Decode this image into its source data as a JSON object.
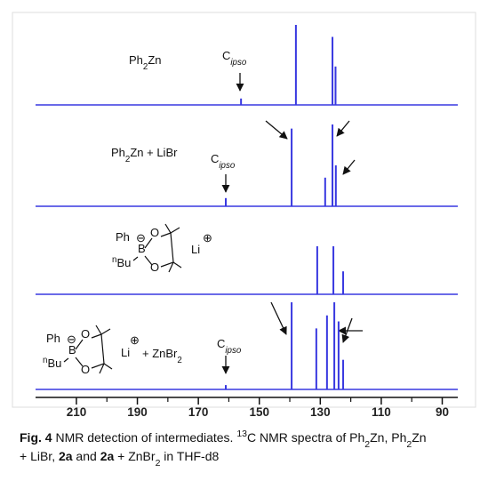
{
  "chart_data": {
    "type": "spectrum",
    "color": "#3838e0",
    "xlim": [
      223.4,
      84.9
    ],
    "xticks": [
      210,
      190,
      170,
      150,
      130,
      110,
      90
    ],
    "xminorticks": [
      200,
      180,
      160,
      140,
      120,
      100
    ],
    "series": [
      {
        "peaks": [
          156,
          138,
          126,
          125
        ],
        "intensities": [
          8,
          100,
          85,
          48
        ],
        "annotations": [
          [
            {
              "text": "Ph"
            },
            {
              "text": "2",
              "sub": true
            },
            {
              "text": "Zn"
            }
          ],
          [
            {
              "text": "C"
            },
            {
              "text": "ipso",
              "sub": true,
              "italic": true
            }
          ]
        ]
      },
      {
        "peaks": [
          161,
          139.4,
          128.4,
          126,
          124.9
        ],
        "intensities": [
          10,
          95,
          35,
          100,
          50
        ],
        "annotations": [
          [
            {
              "text": "Ph"
            },
            {
              "text": "2",
              "sub": true
            },
            {
              "text": "Zn + LiBr"
            }
          ],
          [
            {
              "text": "C"
            },
            {
              "text": "ipso",
              "sub": true,
              "italic": true
            }
          ]
        ]
      },
      {
        "peaks": [
          131,
          125.7,
          122.5
        ],
        "intensities": [
          90,
          90,
          43
        ],
        "annotations": [
          [
            {
              "text": "Ph"
            }
          ],
          [
            {
              "text": "⊖"
            }
          ],
          [
            {
              "text": "O"
            }
          ],
          [
            {
              "text": "B"
            }
          ],
          [
            {
              "text": "n",
              "sup": true
            },
            {
              "text": "Bu"
            }
          ],
          [
            {
              "text": "O"
            }
          ],
          [
            {
              "text": "Li"
            }
          ],
          [
            {
              "text": "⊕"
            }
          ]
        ]
      },
      {
        "peaks": [
          161,
          139.4,
          131.3,
          127.8,
          125.4,
          124,
          122.5
        ],
        "intensities": [
          5,
          100,
          70,
          85,
          100,
          78,
          34
        ],
        "annotations": [
          [
            {
              "text": "Ph"
            }
          ],
          [
            {
              "text": "⊖"
            }
          ],
          [
            {
              "text": "O"
            }
          ],
          [
            {
              "text": "B"
            }
          ],
          [
            {
              "text": "n",
              "sup": true
            },
            {
              "text": "Bu"
            }
          ],
          [
            {
              "text": "O"
            }
          ],
          [
            {
              "text": "Li"
            }
          ],
          [
            {
              "text": "⊕"
            }
          ],
          [
            {
              "text": "+ ZnBr"
            },
            {
              "text": "2",
              "sub": true
            }
          ],
          [
            {
              "text": "C"
            },
            {
              "text": "ipso",
              "sub": true,
              "italic": true
            }
          ]
        ]
      }
    ],
    "caption": [
      [
        {
          "text": "Fig. 4",
          "bold": true
        },
        {
          "text": " NMR detection of intermediates. "
        },
        {
          "text": "13",
          "sup": true
        },
        {
          "text": "C NMR spectra of Ph"
        },
        {
          "text": "2",
          "sub": true
        },
        {
          "text": "Zn, Ph"
        },
        {
          "text": "2",
          "sub": true
        },
        {
          "text": "Zn"
        }
      ],
      [
        {
          "text": "+ LiBr, "
        },
        {
          "text": "2a",
          "bold": true
        },
        {
          "text": " and "
        },
        {
          "text": "2a",
          "bold": true
        },
        {
          "text": " + ZnBr"
        },
        {
          "text": "2",
          "sub": true
        },
        {
          "text": " in THF-d8"
        }
      ]
    ]
  }
}
